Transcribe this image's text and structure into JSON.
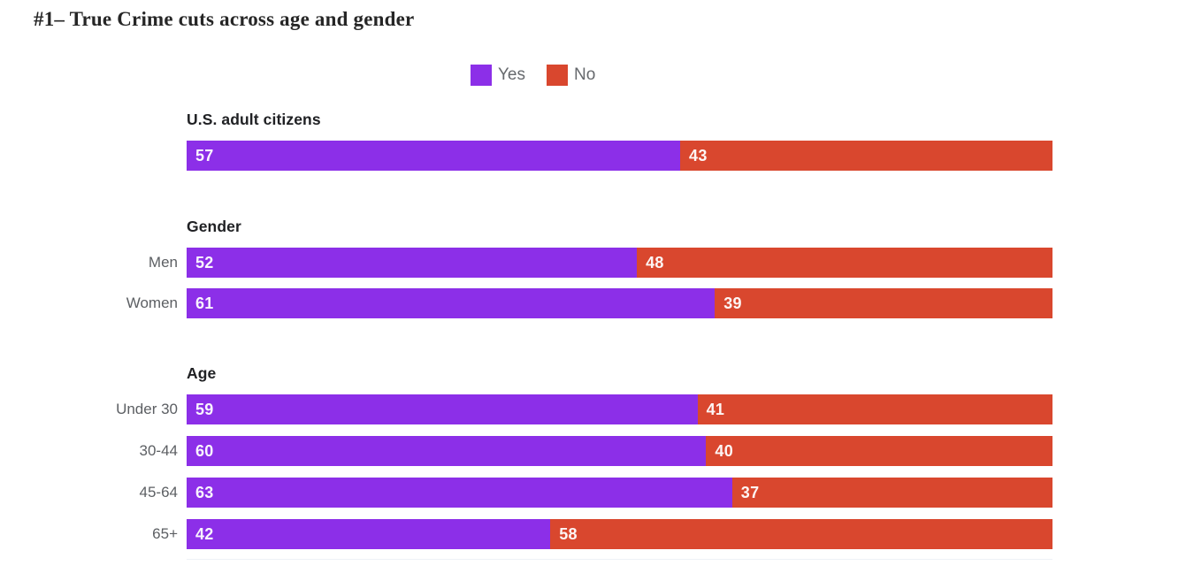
{
  "chart_data": {
    "type": "bar",
    "orientation": "horizontal",
    "stacked": true,
    "title": "#1– True Crime cuts across age and gender",
    "series_names": [
      "Yes",
      "No"
    ],
    "legend": [
      {
        "label": "Yes"
      },
      {
        "label": "No"
      }
    ],
    "colors": {
      "yes": "#8c2fe8",
      "no": "#d9472e"
    },
    "value_unit": "percent",
    "xlim": [
      0,
      100
    ],
    "grid": false,
    "legend_position": "top-center",
    "groups": [
      {
        "header": "U.S. adult citizens",
        "rows": [
          {
            "label": "",
            "yes": 57,
            "no": 43
          }
        ]
      },
      {
        "header": "Gender",
        "rows": [
          {
            "label": "Men",
            "yes": 52,
            "no": 48
          },
          {
            "label": "Women",
            "yes": 61,
            "no": 39
          }
        ]
      },
      {
        "header": "Age",
        "rows": [
          {
            "label": "Under 30",
            "yes": 59,
            "no": 41
          },
          {
            "label": "30-44",
            "yes": 60,
            "no": 40
          },
          {
            "label": "45-64",
            "yes": 63,
            "no": 37
          },
          {
            "label": "65+",
            "yes": 42,
            "no": 58
          }
        ]
      }
    ]
  }
}
